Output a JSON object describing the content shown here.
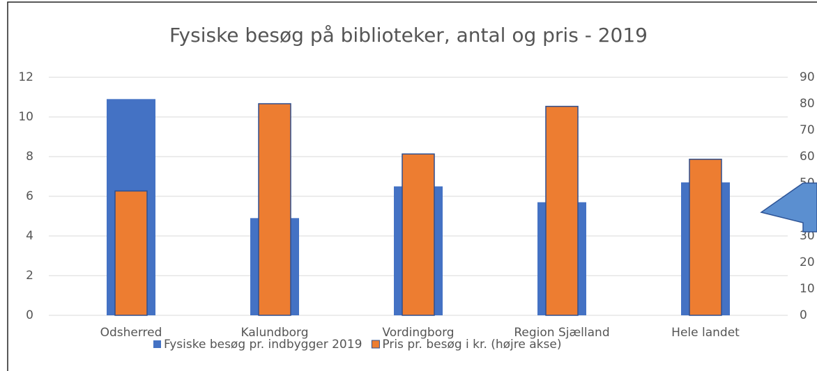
{
  "chart_data": {
    "type": "bar",
    "title": "Fysiske besøg på biblioteker, antal og pris - 2019",
    "categories": [
      "Odsherred",
      "Kalundborg",
      "Vordingborg",
      "Region Sjælland",
      "Hele landet"
    ],
    "series": [
      {
        "name": "Fysiske besøg pr. indbygger 2019",
        "color": "#4472c4",
        "values": [
          10.9,
          4.9,
          6.5,
          5.7,
          6.7
        ]
      },
      {
        "name": "Pris pr. besøg i kr. (højre akse)",
        "color": "#ed7d31",
        "axis": "y2",
        "values": [
          47,
          80,
          61,
          79,
          59
        ]
      }
    ],
    "ylim": [
      0,
      12
    ],
    "yticks": [
      0,
      2,
      4,
      6,
      8,
      10,
      12
    ],
    "y2lim": [
      0,
      90
    ],
    "y2ticks": [
      0,
      10,
      20,
      30,
      40,
      50,
      60,
      70,
      80,
      90
    ],
    "grid": true,
    "legend": "bottom"
  }
}
